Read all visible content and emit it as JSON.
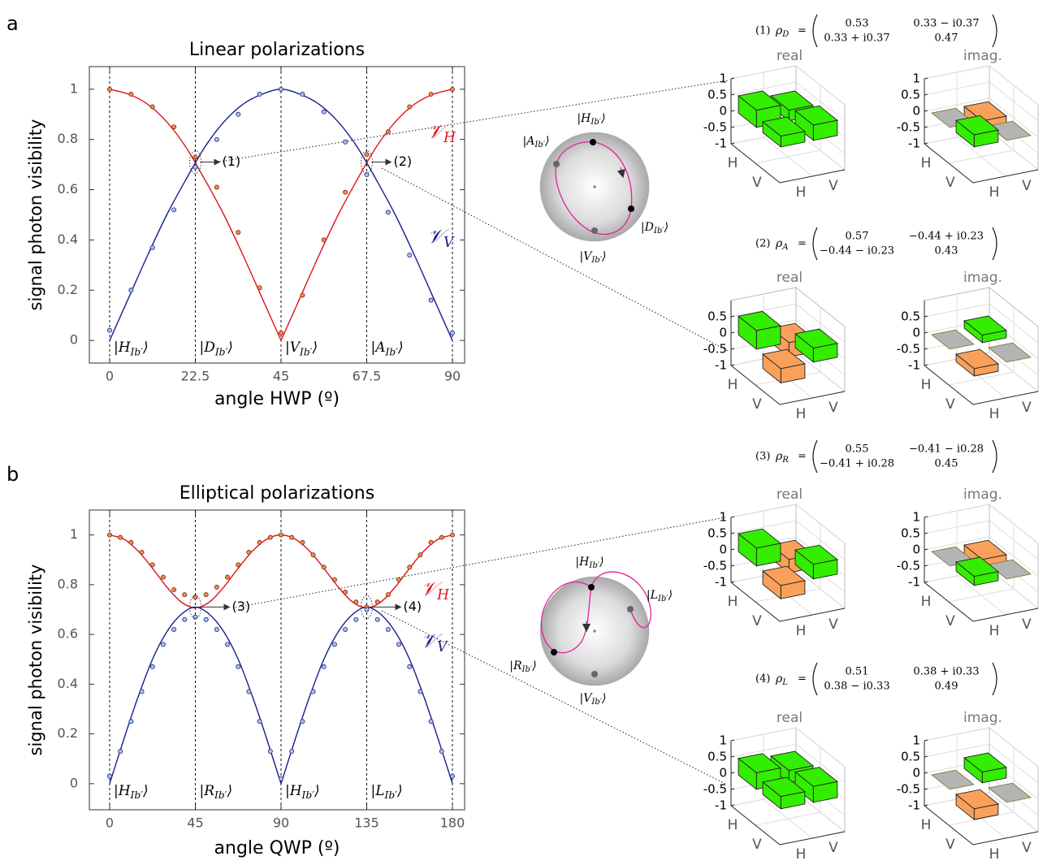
{
  "panel_labels": [
    "a",
    "b"
  ],
  "chart_data": [
    {
      "type": "line",
      "title": "Linear polarizations",
      "xlabel": "angle HWP (º)",
      "ylabel": "signal photon visibility",
      "xlim": [
        -5.33,
        93.2
      ],
      "ylim": [
        -0.09,
        1.09
      ],
      "xticks": [
        0,
        22.5,
        45,
        67.5,
        90
      ],
      "yticks": [
        0,
        0.2,
        0.4,
        0.6,
        0.8,
        1
      ],
      "states": [
        {
          "x": 0,
          "main": "|H",
          "sub": "Ib′",
          "close": "⟩"
        },
        {
          "x": 22.5,
          "main": "|D",
          "sub": "Ib′",
          "close": "⟩"
        },
        {
          "x": 45,
          "main": "|V",
          "sub": "Ib′",
          "close": "⟩"
        },
        {
          "x": 67.5,
          "main": "|A",
          "sub": "Ib′",
          "close": "⟩"
        },
        {
          "x": 90
        }
      ],
      "series": [
        {
          "name": "𝒱",
          "sub": "H",
          "color": "#e0141e",
          "style": "line",
          "x": [
            0,
            5,
            10,
            15,
            20,
            25,
            30,
            35,
            40,
            45,
            50,
            55,
            60,
            65,
            70,
            75,
            80,
            85,
            90
          ],
          "values": [
            1,
            0.98,
            0.94,
            0.87,
            0.77,
            0.64,
            0.5,
            0.34,
            0.17,
            0,
            0.17,
            0.34,
            0.5,
            0.64,
            0.77,
            0.87,
            0.94,
            0.98,
            1
          ]
        },
        {
          "name": "𝒱",
          "sub": "V",
          "color": "#1c1c8a",
          "style": "line",
          "x": [
            0,
            5,
            10,
            15,
            20,
            25,
            30,
            35,
            40,
            45,
            50,
            55,
            60,
            65,
            70,
            75,
            80,
            85,
            90
          ],
          "values": [
            0,
            0.17,
            0.34,
            0.5,
            0.64,
            0.77,
            0.87,
            0.94,
            0.98,
            1,
            0.98,
            0.94,
            0.87,
            0.77,
            0.64,
            0.5,
            0.34,
            0.17,
            0
          ]
        },
        {
          "color": "#7a2a10",
          "fill": "#f08a48",
          "style": "marker",
          "x": [
            0,
            5.625,
            11.25,
            16.875,
            22.5,
            28.125,
            33.75,
            39.375,
            45,
            50.625,
            56.25,
            61.875,
            67.5,
            73.125,
            78.75,
            84.375,
            90
          ],
          "values": [
            1,
            0.98,
            0.93,
            0.85,
            0.73,
            0.61,
            0.43,
            0.21,
            0.03,
            0.18,
            0.4,
            0.59,
            0.74,
            0.83,
            0.93,
            0.98,
            1
          ]
        },
        {
          "color": "#1a2a80",
          "fill": "#a8c0f0",
          "style": "marker",
          "x": [
            0,
            5.625,
            11.25,
            16.875,
            22.5,
            28.125,
            33.75,
            39.375,
            45,
            50.625,
            56.25,
            61.875,
            67.5,
            73.125,
            78.75,
            84.375,
            90
          ],
          "values": [
            0.04,
            0.2,
            0.37,
            0.52,
            0.69,
            0.8,
            0.9,
            0.98,
            1,
            0.98,
            0.91,
            0.79,
            0.66,
            0.51,
            0.34,
            0.16,
            0.03
          ]
        }
      ],
      "annotations": [
        {
          "text": "(1)",
          "x": 22.5,
          "y": 0.71
        },
        {
          "text": "(2)",
          "x": 67.5,
          "y": 0.71
        }
      ]
    },
    {
      "type": "line",
      "title": "Elliptical polarizations",
      "xlabel": "angle QWP (º)",
      "ylabel": "signal photon visibility",
      "xlim": [
        -10.66,
        186.4
      ],
      "ylim": [
        -0.105,
        1.1
      ],
      "xticks": [
        0,
        45,
        90,
        135,
        180
      ],
      "yticks": [
        0,
        0.2,
        0.4,
        0.6,
        0.8,
        1
      ],
      "states": [
        {
          "x": 0,
          "main": "|H",
          "sub": "Ib′",
          "close": "⟩"
        },
        {
          "x": 45,
          "main": "|R",
          "sub": "Ib′",
          "close": "⟩"
        },
        {
          "x": 90,
          "main": "|H",
          "sub": "Ib′",
          "close": "⟩"
        },
        {
          "x": 135,
          "main": "|L",
          "sub": "Ib′",
          "close": "⟩"
        },
        {
          "x": 180
        }
      ],
      "series": [
        {
          "name": "𝒱",
          "sub": "H",
          "color": "#e0141e",
          "style": "line",
          "x": [
            0,
            7.5,
            15,
            22.5,
            30,
            37.5,
            45,
            52.5,
            60,
            67.5,
            75,
            82.5,
            90,
            97.5,
            105,
            112.5,
            120,
            127.5,
            135,
            142.5,
            150,
            157.5,
            165,
            172.5,
            180
          ],
          "values": [
            1,
            0.983,
            0.935,
            0.866,
            0.791,
            0.731,
            0.707,
            0.731,
            0.791,
            0.866,
            0.935,
            0.983,
            1,
            0.983,
            0.935,
            0.866,
            0.791,
            0.731,
            0.707,
            0.731,
            0.791,
            0.866,
            0.935,
            0.983,
            1
          ]
        },
        {
          "name": "𝒱",
          "sub": "V",
          "color": "#1c1c8a",
          "style": "line",
          "x": [
            0,
            7.5,
            15,
            22.5,
            30,
            37.5,
            45,
            52.5,
            60,
            67.5,
            75,
            82.5,
            90,
            97.5,
            105,
            112.5,
            120,
            127.5,
            135,
            142.5,
            150,
            157.5,
            165,
            172.5,
            180
          ],
          "values": [
            0,
            0.18,
            0.35,
            0.5,
            0.61,
            0.68,
            0.71,
            0.68,
            0.61,
            0.5,
            0.35,
            0.18,
            0,
            0.18,
            0.35,
            0.5,
            0.61,
            0.68,
            0.71,
            0.68,
            0.61,
            0.5,
            0.35,
            0.18,
            0
          ]
        },
        {
          "color": "#7a2a10",
          "fill": "#f08a48",
          "style": "marker",
          "x": [
            0,
            5.625,
            11.25,
            16.875,
            22.5,
            28.125,
            33.75,
            39.375,
            45,
            50.625,
            56.25,
            61.875,
            67.5,
            73.125,
            78.75,
            84.375,
            90,
            95.625,
            101.25,
            106.875,
            112.5,
            118.125,
            123.75,
            129.375,
            135,
            140.625,
            146.25,
            151.875,
            157.5,
            163.125,
            168.75,
            174.375,
            180
          ],
          "values": [
            1,
            0.99,
            0.97,
            0.93,
            0.88,
            0.83,
            0.78,
            0.76,
            0.75,
            0.76,
            0.79,
            0.83,
            0.88,
            0.93,
            0.97,
            0.99,
            1,
            0.99,
            0.97,
            0.92,
            0.87,
            0.82,
            0.77,
            0.73,
            0.71,
            0.73,
            0.76,
            0.82,
            0.87,
            0.92,
            0.97,
            0.99,
            1
          ]
        },
        {
          "color": "#1a2a80",
          "fill": "#a8c0f0",
          "style": "marker",
          "x": [
            0,
            5.625,
            11.25,
            16.875,
            22.5,
            28.125,
            33.75,
            39.375,
            45,
            50.625,
            56.25,
            61.875,
            67.5,
            73.125,
            78.75,
            84.375,
            90,
            95.625,
            101.25,
            106.875,
            112.5,
            118.125,
            123.75,
            129.375,
            135,
            140.625,
            146.25,
            151.875,
            157.5,
            163.125,
            168.75,
            174.375,
            180
          ],
          "values": [
            0.03,
            0.13,
            0.25,
            0.37,
            0.47,
            0.56,
            0.62,
            0.66,
            0.67,
            0.66,
            0.62,
            0.56,
            0.47,
            0.37,
            0.25,
            0.13,
            0.02,
            0.13,
            0.25,
            0.37,
            0.47,
            0.56,
            0.62,
            0.66,
            0.7,
            0.66,
            0.62,
            0.56,
            0.47,
            0.37,
            0.25,
            0.13,
            0.03
          ]
        }
      ],
      "annotations": [
        {
          "text": "(3)",
          "x": 45,
          "y": 0.71
        },
        {
          "text": "(4)",
          "x": 135,
          "y": 0.71
        }
      ]
    },
    {
      "type": "bar3d",
      "index": "(1)",
      "symbol": "ρ",
      "subscript": "D",
      "equals": "=",
      "matrix": [
        [
          "0.53",
          "0.33 − i0.37"
        ],
        [
          "0.33 + i0.37",
          "0.47"
        ]
      ],
      "panels": [
        {
          "title": "real",
          "values": [
            [
              0.53,
              0.33
            ],
            [
              0.33,
              0.47
            ]
          ]
        },
        {
          "title": "imag.",
          "values": [
            [
              0,
              -0.37
            ],
            [
              0.37,
              0
            ]
          ]
        }
      ],
      "zlim": [
        -1,
        1
      ],
      "zticks": [
        1,
        0.5,
        0,
        -0.5,
        -1
      ],
      "row_labels": [
        "H",
        "V"
      ],
      "col_labels": [
        "H",
        "V"
      ],
      "colors": {
        "positive": "#33ee00",
        "negative": "#f9a15a",
        "zero": "#b4b4b4"
      }
    },
    {
      "type": "bar3d",
      "index": "(2)",
      "symbol": "ρ",
      "subscript": "A",
      "equals": "=",
      "matrix": [
        [
          "0.57",
          "−0.44 + i0.23"
        ],
        [
          "−0.44 − i0.23",
          "0.43"
        ]
      ],
      "panels": [
        {
          "title": "real",
          "values": [
            [
              0.57,
              -0.44
            ],
            [
              -0.44,
              0.43
            ]
          ]
        },
        {
          "title": "imag.",
          "values": [
            [
              0,
              0.23
            ],
            [
              -0.23,
              0
            ]
          ]
        }
      ],
      "zlim": [
        -1,
        1
      ],
      "zticks": [
        0.5,
        0,
        -0.5,
        -1
      ],
      "row_labels": [
        "H",
        "V"
      ],
      "col_labels": [
        "H",
        "V"
      ],
      "colors": {
        "positive": "#33ee00",
        "negative": "#f9a15a",
        "zero": "#b4b4b4"
      }
    },
    {
      "type": "bar3d",
      "index": "(3)",
      "symbol": "ρ",
      "subscript": "R",
      "equals": "=",
      "matrix": [
        [
          "0.55",
          "−0.41 − i0.28"
        ],
        [
          "−0.41 + i0.28",
          "0.45"
        ]
      ],
      "panels": [
        {
          "title": "real",
          "values": [
            [
              0.55,
              -0.41
            ],
            [
              -0.41,
              0.45
            ]
          ]
        },
        {
          "title": "imag.",
          "values": [
            [
              0,
              -0.28
            ],
            [
              0.28,
              0
            ]
          ]
        }
      ],
      "zlim": [
        -1,
        1
      ],
      "zticks": [
        1,
        0.5,
        0,
        -0.5,
        -1
      ],
      "row_labels": [
        "H",
        "V"
      ],
      "col_labels": [
        "H",
        "V"
      ],
      "colors": {
        "positive": "#33ee00",
        "negative": "#f9a15a",
        "zero": "#b4b4b4"
      }
    },
    {
      "type": "bar3d",
      "index": "(4)",
      "symbol": "ρ",
      "subscript": "L",
      "equals": "=",
      "matrix": [
        [
          "0.51",
          "0.38 + i0.33"
        ],
        [
          "0.38 − i0.33",
          "0.49"
        ]
      ],
      "panels": [
        {
          "title": "real",
          "values": [
            [
              0.51,
              0.38
            ],
            [
              0.38,
              0.49
            ]
          ]
        },
        {
          "title": "imag.",
          "values": [
            [
              0,
              0.33
            ],
            [
              -0.33,
              0
            ]
          ]
        }
      ],
      "zlim": [
        -1,
        1
      ],
      "zticks": [
        1,
        0.5,
        0,
        -0.5,
        -1
      ],
      "row_labels": [
        "H",
        "V"
      ],
      "col_labels": [
        "H",
        "V"
      ],
      "colors": {
        "positive": "#33ee00",
        "negative": "#f9a15a",
        "zero": "#b4b4b4"
      }
    }
  ],
  "bloch_spheres": [
    {
      "states": [
        {
          "main": "|H",
          "sub": "Ib′",
          "close": "⟩"
        },
        {
          "main": "|A",
          "sub": "Ib′",
          "close": "⟩"
        },
        {
          "main": "|D",
          "sub": "Ib′",
          "close": "⟩"
        },
        {
          "main": "|V",
          "sub": "Ib′",
          "close": "⟩"
        }
      ]
    },
    {
      "states": [
        {
          "main": "|H",
          "sub": "Ib′",
          "close": "⟩"
        },
        {
          "main": "|L",
          "sub": "Ib′",
          "close": "⟩"
        },
        {
          "main": "|R",
          "sub": "Ib′",
          "close": "⟩"
        },
        {
          "main": "|V",
          "sub": "Ib′",
          "close": "⟩"
        }
      ]
    }
  ]
}
